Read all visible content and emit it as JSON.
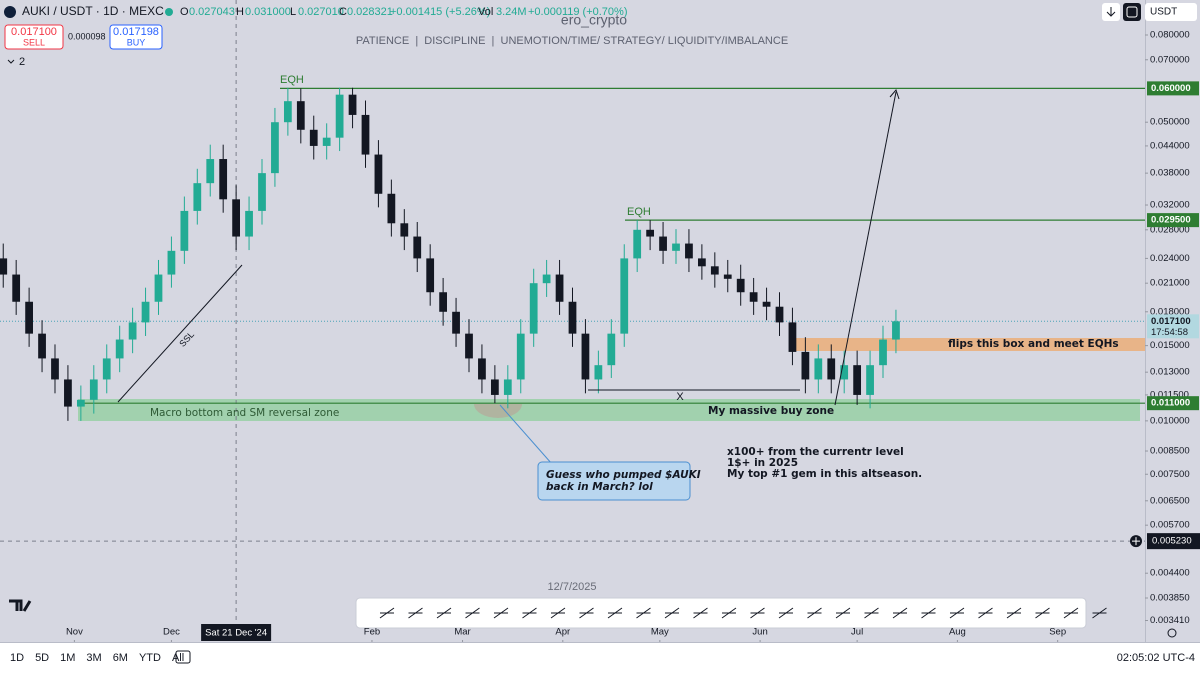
{
  "header": {
    "symbol": "AUKI / USDT · 1D · MEXC",
    "o_label": "O",
    "o": "0.027043",
    "h_label": "H",
    "h": "0.031000",
    "l_label": "L",
    "l": "0.027010",
    "c_label": "C",
    "c": "0.028321",
    "change": "+0.001415 (+5.26%)",
    "vol_label": "Vol",
    "vol": "3.24M",
    "vol_change": "+0.000119 (+0.70%)",
    "sell_price": "0.017100",
    "sell": "SELL",
    "spread": "0.000098",
    "buy_price": "0.017198",
    "buy": "BUY",
    "indicators": "2",
    "currency": "USDT"
  },
  "chart_data": {
    "type": "candlestick",
    "watermark": "ero_crypto",
    "subtitle": "PATIENCE  |  DISCIPLINE  |  UNEMOTION/TIME/ STRATEGY/ LIQUIDITY/IMBALANCE",
    "log_scale": true,
    "up_color": "#22ab94",
    "down_color": "#131722",
    "x": [
      -22,
      -18,
      -14,
      -10,
      -6,
      -2,
      2,
      6,
      10,
      14,
      18,
      22,
      26,
      30,
      34,
      38,
      42,
      46,
      50,
      54,
      58,
      62,
      66,
      70,
      74,
      78,
      82,
      86,
      90,
      94,
      98,
      102,
      106,
      110,
      114,
      118,
      122,
      126,
      130,
      134,
      138,
      142,
      146,
      150,
      154,
      158,
      162,
      166,
      170,
      174,
      178,
      182,
      186,
      190,
      194,
      198,
      202,
      206,
      210,
      214,
      218,
      222,
      226,
      230,
      234,
      238,
      242,
      246,
      250,
      254
    ],
    "open": [
      0.024,
      0.022,
      0.019,
      0.016,
      0.014,
      0.0125,
      0.0108,
      0.0112,
      0.0125,
      0.014,
      0.0155,
      0.017,
      0.019,
      0.022,
      0.025,
      0.031,
      0.036,
      0.041,
      0.033,
      0.027,
      0.031,
      0.038,
      0.05,
      0.056,
      0.048,
      0.044,
      0.046,
      0.058,
      0.052,
      0.042,
      0.034,
      0.029,
      0.027,
      0.024,
      0.02,
      0.018,
      0.016,
      0.014,
      0.0125,
      0.0115,
      0.0125,
      0.016,
      0.021,
      0.022,
      0.019,
      0.016,
      0.0125,
      0.0135,
      0.016,
      0.024,
      0.028,
      0.027,
      0.025,
      0.026,
      0.024,
      0.023,
      0.022,
      0.0215,
      0.02,
      0.019,
      0.0185,
      0.017,
      0.0145,
      0.0125,
      0.014,
      0.0125,
      0.0135,
      0.0115,
      0.0135,
      0.0155
    ],
    "high": [
      0.026,
      0.0238,
      0.0205,
      0.0172,
      0.0151,
      0.0135,
      0.0121,
      0.0135,
      0.0151,
      0.0167,
      0.0184,
      0.0205,
      0.0238,
      0.027,
      0.0335,
      0.0389,
      0.0443,
      0.0443,
      0.0356,
      0.0335,
      0.041,
      0.054,
      0.0602,
      0.06,
      0.0518,
      0.0497,
      0.0602,
      0.0602,
      0.0562,
      0.0454,
      0.0367,
      0.0313,
      0.0292,
      0.0259,
      0.0216,
      0.0194,
      0.0173,
      0.0151,
      0.0135,
      0.0135,
      0.0173,
      0.0227,
      0.0238,
      0.0238,
      0.0205,
      0.0173,
      0.0146,
      0.0173,
      0.0259,
      0.0295,
      0.0295,
      0.0292,
      0.0281,
      0.0281,
      0.0259,
      0.0248,
      0.0238,
      0.0232,
      0.0216,
      0.0205,
      0.02,
      0.0184,
      0.0157,
      0.0151,
      0.0151,
      0.0146,
      0.0146,
      0.0146,
      0.0167,
      0.0182
    ],
    "low": [
      0.0205,
      0.0177,
      0.0149,
      0.013,
      0.0116,
      0.01,
      0.01,
      0.0104,
      0.0116,
      0.013,
      0.0144,
      0.0158,
      0.0177,
      0.0205,
      0.0233,
      0.0288,
      0.0335,
      0.0307,
      0.0251,
      0.0251,
      0.0288,
      0.0353,
      0.0465,
      0.0446,
      0.0409,
      0.0409,
      0.0428,
      0.0484,
      0.0391,
      0.0316,
      0.027,
      0.0251,
      0.0223,
      0.0186,
      0.0167,
      0.0149,
      0.013,
      0.0116,
      0.011,
      0.0107,
      0.0116,
      0.0149,
      0.0195,
      0.0177,
      0.0149,
      0.0116,
      0.0116,
      0.0126,
      0.0149,
      0.0223,
      0.0251,
      0.0233,
      0.0233,
      0.0223,
      0.0214,
      0.0205,
      0.02,
      0.0186,
      0.0177,
      0.0172,
      0.0158,
      0.0135,
      0.0116,
      0.0116,
      0.0116,
      0.0116,
      0.0109,
      0.0107,
      0.0126,
      0.0144
    ],
    "close": [
      0.022,
      0.019,
      0.016,
      0.014,
      0.0125,
      0.0108,
      0.0112,
      0.0125,
      0.014,
      0.0155,
      0.017,
      0.019,
      0.022,
      0.025,
      0.031,
      0.036,
      0.041,
      0.033,
      0.027,
      0.031,
      0.038,
      0.05,
      0.056,
      0.048,
      0.044,
      0.046,
      0.058,
      0.052,
      0.042,
      0.034,
      0.029,
      0.027,
      0.024,
      0.02,
      0.018,
      0.016,
      0.014,
      0.0125,
      0.0115,
      0.0125,
      0.016,
      0.021,
      0.022,
      0.019,
      0.016,
      0.0125,
      0.0135,
      0.016,
      0.024,
      0.028,
      0.027,
      0.025,
      0.026,
      0.024,
      0.023,
      0.022,
      0.0215,
      0.02,
      0.019,
      0.0185,
      0.017,
      0.0145,
      0.0125,
      0.014,
      0.0125,
      0.0135,
      0.0115,
      0.0135,
      0.0155,
      0.0171
    ],
    "xlim": [
      -23,
      331
    ],
    "xticks": [
      {
        "value": 0,
        "label": "Nov"
      },
      {
        "value": 30,
        "label": "Dec"
      },
      {
        "value": 92,
        "label": "Feb"
      },
      {
        "value": 120,
        "label": "Mar"
      },
      {
        "value": 151,
        "label": "Apr"
      },
      {
        "value": 181,
        "label": "May"
      },
      {
        "value": 212,
        "label": "Jun"
      },
      {
        "value": 242,
        "label": "Jul"
      },
      {
        "value": 273,
        "label": "Aug"
      },
      {
        "value": 304,
        "label": "Sep"
      }
    ],
    "ylim": [
      0.00307,
      0.0966
    ],
    "yticks": [
      {
        "value": 0.08,
        "label": "0.080000"
      },
      {
        "value": 0.07,
        "label": "0.070000"
      },
      {
        "value": 0.05,
        "label": "0.050000"
      },
      {
        "value": 0.044,
        "label": "0.044000"
      },
      {
        "value": 0.038,
        "label": "0.038000"
      },
      {
        "value": 0.032,
        "label": "0.032000"
      },
      {
        "value": 0.028,
        "label": "0.028000"
      },
      {
        "value": 0.024,
        "label": "0.024000"
      },
      {
        "value": 0.021,
        "label": "0.021000"
      },
      {
        "value": 0.018,
        "label": "0.018000"
      },
      {
        "value": 0.015,
        "label": "0.015000"
      },
      {
        "value": 0.013,
        "label": "0.013000"
      },
      {
        "value": 0.0115,
        "label": "0.011500"
      },
      {
        "value": 0.01,
        "label": "0.010000"
      },
      {
        "value": 0.0085,
        "label": "0.008500"
      },
      {
        "value": 0.0075,
        "label": "0.007500"
      },
      {
        "value": 0.0065,
        "label": "0.006500"
      },
      {
        "value": 0.0057,
        "label": "0.005700"
      },
      {
        "value": 0.0044,
        "label": "0.004400"
      },
      {
        "value": 0.00385,
        "label": "0.003850"
      },
      {
        "value": 0.00341,
        "label": "0.003410"
      }
    ],
    "levels": [
      {
        "value": 0.06,
        "label": "0.060000",
        "color": "#2e7d32"
      },
      {
        "value": 0.0295,
        "label": "0.029500",
        "color": "#2e7d32"
      },
      {
        "value": 0.011,
        "label": "0.011000",
        "color": "#2e7d32"
      }
    ],
    "last_price": {
      "value": 0.0171,
      "label": "0.017100",
      "countdown": "17:54:58",
      "color": "#b2d8e0"
    },
    "crosshair": {
      "x": 50,
      "date": "Sat 21 Dec '24",
      "value": 0.00523,
      "label": "0.005230"
    },
    "annotations": {
      "eqh_1": "EQH",
      "eqh_2": "EQH",
      "ssl": "SSL",
      "x": "X",
      "macro": "Macro bottom and SM reversal zone",
      "buy_zone": "My massive buy zone",
      "flip": "flips this box and meet  EQHs",
      "note_1": "x100+ from the currentr level",
      "note_2": "1$+ in 2025",
      "note_3": "My top #1 gem in this altseason.",
      "callout_1": "Guess who pumped $AUKI",
      "callout_2": "back in March? lol",
      "date_note": "12/7/2025"
    }
  },
  "bottom_bar": {
    "ranges": [
      "1D",
      "5D",
      "1M",
      "3M",
      "6M",
      "YTD",
      "All"
    ],
    "clock": "02:05:02 UTC-4"
  }
}
